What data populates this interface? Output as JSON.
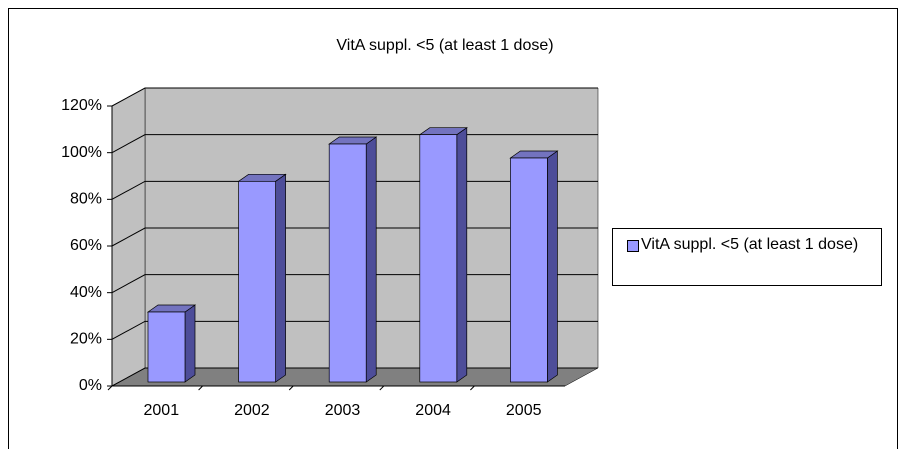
{
  "chart_data": {
    "type": "bar3d",
    "title": "VitA suppl. <5 (at least 1 dose)",
    "categories": [
      "2001",
      "2002",
      "2003",
      "2004",
      "2005"
    ],
    "series": [
      {
        "name": "VitA suppl. <5 (at least 1 dose)",
        "color": "#9999ff",
        "values": [
          30,
          86,
          102,
          106,
          96
        ]
      }
    ],
    "ylim": [
      0,
      120
    ],
    "yticks": [
      {
        "value": 0,
        "label": "0%"
      },
      {
        "value": 20,
        "label": "20%"
      },
      {
        "value": 40,
        "label": "40%"
      },
      {
        "value": 60,
        "label": "60%"
      },
      {
        "value": 80,
        "label": "80%"
      },
      {
        "value": 100,
        "label": "100%"
      },
      {
        "value": 120,
        "label": "120%"
      }
    ],
    "grid": true,
    "legend": "right"
  }
}
